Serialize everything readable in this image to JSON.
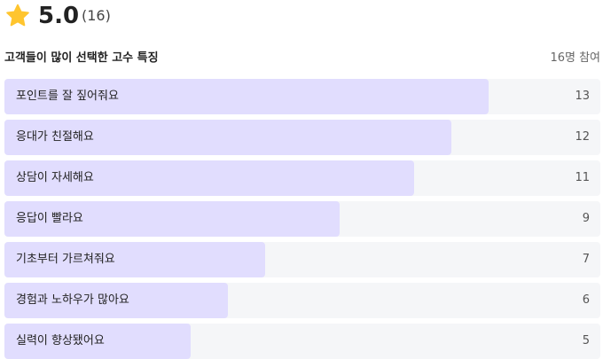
{
  "rating": "5.0",
  "review_count": "(16)",
  "section": {
    "title": "고객들이 많이 선택한 고수 특징",
    "participants": {
      "value": 16,
      "label": "16명 참여"
    }
  },
  "items": [
    {
      "label": "포인트를 잘 짚어줘요",
      "count": 13
    },
    {
      "label": "응대가 친절해요",
      "count": 12
    },
    {
      "label": "상담이 자세해요",
      "count": 11
    },
    {
      "label": "응답이 빨라요",
      "count": 9
    },
    {
      "label": "기초부터 가르쳐줘요",
      "count": 7
    },
    {
      "label": "경험과 노하우가 많아요",
      "count": 6
    },
    {
      "label": "실력이 향상됐어요",
      "count": 5
    }
  ]
}
